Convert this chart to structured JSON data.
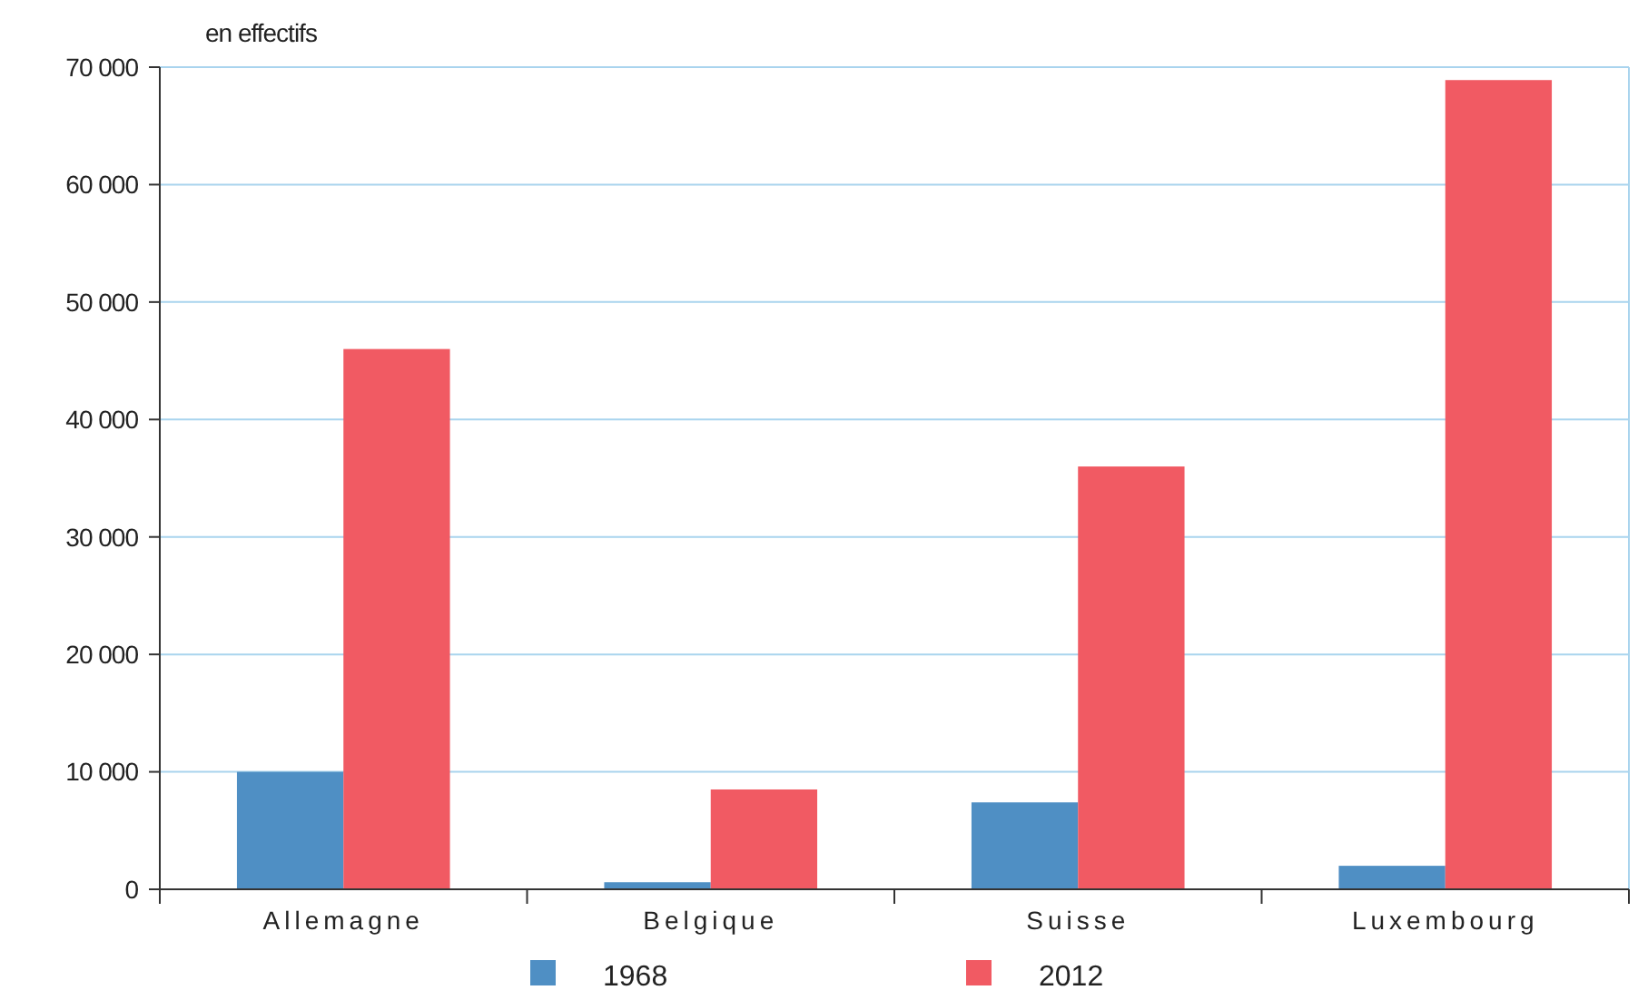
{
  "chart_data": {
    "type": "bar",
    "ylabel": "en effectifs",
    "categories": [
      "Allemagne",
      "Belgique",
      "Suisse",
      "Luxembourg"
    ],
    "series": [
      {
        "name": "1968",
        "color": "#4f8fc4",
        "values": [
          10000,
          600,
          7400,
          2000
        ]
      },
      {
        "name": "2012",
        "color": "#f15a63",
        "values": [
          46000,
          8500,
          36000,
          68900
        ]
      }
    ],
    "ylim": [
      0,
      70000
    ],
    "yticks": [
      {
        "value": 0,
        "label": "0"
      },
      {
        "value": 10000,
        "label": "10 000"
      },
      {
        "value": 20000,
        "label": "20 000"
      },
      {
        "value": 30000,
        "label": "30 000"
      },
      {
        "value": 40000,
        "label": "40 000"
      },
      {
        "value": 50000,
        "label": "50 000"
      },
      {
        "value": 60000,
        "label": "60 000"
      },
      {
        "value": 70000,
        "label": "70 000"
      }
    ],
    "grid": "y",
    "legend": "bottom"
  }
}
